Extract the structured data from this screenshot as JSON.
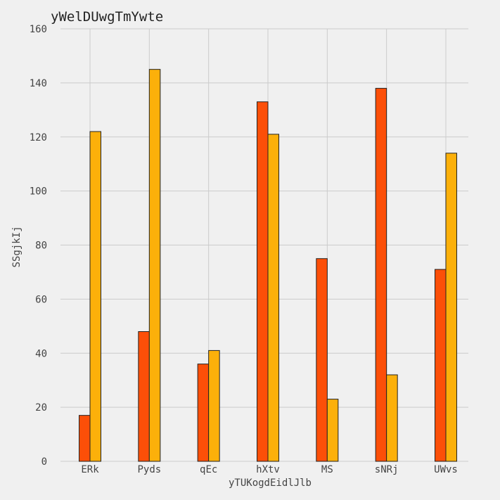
{
  "chart_data": {
    "type": "bar",
    "title": "yWelDUwgTmYwte",
    "xlabel": "yTUKogdEidlJlb",
    "ylabel": "SSgjkIj",
    "ylim": [
      0,
      160
    ],
    "yticks": [
      0,
      20,
      40,
      60,
      80,
      100,
      120,
      140,
      160
    ],
    "grid": true,
    "categories": [
      "ERk",
      "Pyds",
      "qEc",
      "hXtv",
      "MS",
      "sNRj",
      "UWvs"
    ],
    "series": [
      {
        "name": "series-1",
        "color": "#fc4f08",
        "values": [
          17,
          48,
          36,
          133,
          75,
          138,
          71
        ]
      },
      {
        "name": "series-2",
        "color": "#fcb00a",
        "values": [
          122,
          145,
          41,
          121,
          23,
          32,
          114
        ]
      }
    ]
  }
}
